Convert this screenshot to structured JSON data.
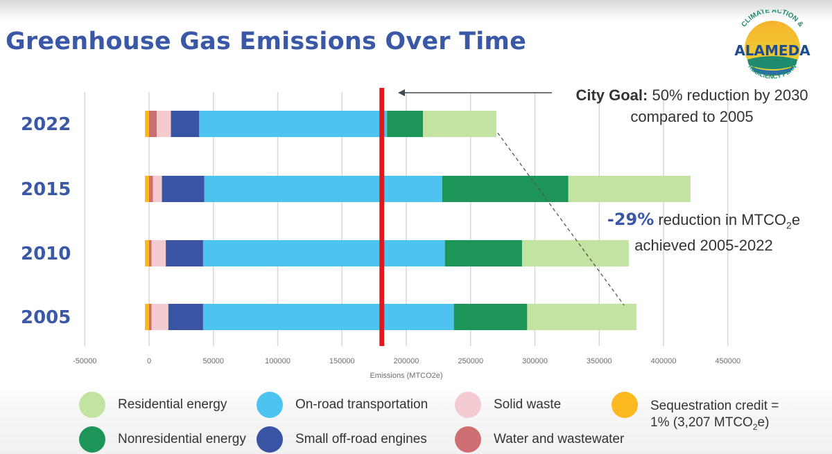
{
  "slide": {
    "title": "Greenhouse Gas Emissions Over Time",
    "logo": {
      "top_text": "CLIMATE ACTION &",
      "name": "ALAMEDA",
      "bottom_text": "RESILIENCY PLAN"
    }
  },
  "annotations": {
    "goal_bold": "City Goal:",
    "goal_rest": "50% reduction by 2030",
    "goal_line2": "compared to 2005",
    "reduction_pct": "-29%",
    "reduction_text_a": "reduction in MTCO",
    "reduction_sub": "2",
    "reduction_text_b": "e",
    "reduction_line2": "achieved 2005-2022"
  },
  "colors": {
    "title": "#3a58a5",
    "goal_line": "#e8151b",
    "Residential energy": "#c3e3a2",
    "Nonresidential energy": "#1d9558",
    "On-road transportation": "#4dc3ef",
    "Small off-road engines": "#3a54a4",
    "Solid waste": "#f4cbd0",
    "Water and wastewater": "#cd6f72",
    "Sequestration credit": "#fbb821"
  },
  "chart_data": {
    "type": "bar",
    "orientation": "horizontal",
    "stacked": true,
    "title": "",
    "xlabel": "Emissions (MTCO2e)",
    "ylabel": "",
    "xlim": [
      -50000,
      450000
    ],
    "xticks": [
      -50000,
      0,
      50000,
      100000,
      150000,
      200000,
      250000,
      300000,
      350000,
      400000,
      450000
    ],
    "grid": "vertical",
    "legend_placement": "bottom",
    "categories": [
      "2022",
      "2015",
      "2010",
      "2005"
    ],
    "series": [
      {
        "name": "Sequestration credit",
        "values": [
          -3207,
          -3207,
          -3207,
          -3207
        ]
      },
      {
        "name": "Water and wastewater",
        "values": [
          6000,
          3000,
          2000,
          2000
        ]
      },
      {
        "name": "Solid waste",
        "values": [
          11000,
          7000,
          11000,
          13000
        ]
      },
      {
        "name": "Small off-road engines",
        "values": [
          22000,
          33000,
          29000,
          27000
        ]
      },
      {
        "name": "On-road transportation",
        "values": [
          146000,
          185000,
          188000,
          195000
        ]
      },
      {
        "name": "Nonresidential energy",
        "values": [
          28000,
          98000,
          60000,
          57000
        ]
      },
      {
        "name": "Residential energy",
        "values": [
          57000,
          95000,
          83000,
          85000
        ]
      }
    ],
    "goal_line_x": 181000,
    "legend": [
      {
        "name": "Residential energy",
        "label": "Residential energy"
      },
      {
        "name": "On-road transportation",
        "label": "On-road transportation"
      },
      {
        "name": "Solid waste",
        "label": "Solid waste"
      },
      {
        "name": "Sequestration credit",
        "label_line1": "Sequestration credit =",
        "label_line2_a": "1% (3,207 MTCO",
        "label_line2_sub": "2",
        "label_line2_b": "e)"
      },
      {
        "name": "Nonresidential energy",
        "label": "Nonresidential energy"
      },
      {
        "name": "Small off-road engines",
        "label": "Small off-road engines"
      },
      {
        "name": "Water and wastewater",
        "label": "Water and wastewater"
      }
    ]
  }
}
